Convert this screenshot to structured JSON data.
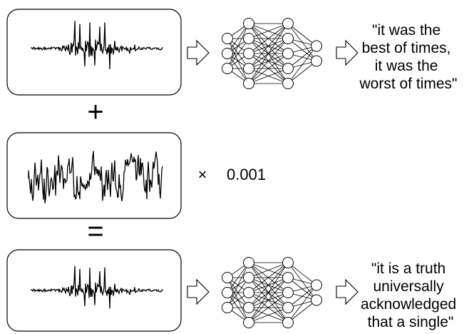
{
  "rows": {
    "top": {
      "caption_lines": [
        "\"it was the",
        "best of times,",
        "it was the",
        "worst of times\""
      ]
    },
    "middle": {
      "multiply_sign": "×",
      "scale_factor": "0.001"
    },
    "bottom": {
      "caption_lines": [
        "\"it is a truth",
        "universally",
        "acknowledged",
        "that a single\""
      ]
    }
  },
  "operators": {
    "plus": "+",
    "equals": "="
  },
  "network": {
    "layers": [
      3,
      5,
      5,
      2
    ]
  }
}
